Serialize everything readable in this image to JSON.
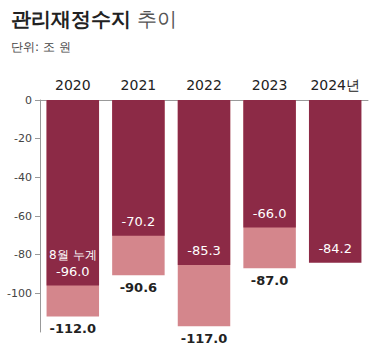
{
  "chart_data": {
    "type": "bar",
    "title": "관리재정수지 추이",
    "subtitle": "단위: 조 원",
    "categories": [
      "2020",
      "2021",
      "2022",
      "2023",
      "2024년"
    ],
    "series": [
      {
        "color": "#d4868c",
        "values": [
          -112.0,
          -90.6,
          -117.0,
          -87.0,
          null
        ],
        "value_labels": [
          "-112.0",
          "-90.6",
          "-117.0",
          "-87.0",
          null
        ]
      },
      {
        "color": "#8c2a46",
        "values": [
          -96.0,
          -70.2,
          -85.3,
          -66.0,
          -84.2
        ],
        "value_labels": [
          "-96.0",
          "-70.2",
          "-85.3",
          "-66.0",
          "-84.2"
        ]
      }
    ],
    "annotations": [
      {
        "text": "8월 누계",
        "category": "2020"
      }
    ],
    "ylim": [
      -120,
      0
    ],
    "yticks": [
      0,
      -20,
      -40,
      -60,
      -80,
      -100
    ],
    "grid": false,
    "data_labels": true
  }
}
